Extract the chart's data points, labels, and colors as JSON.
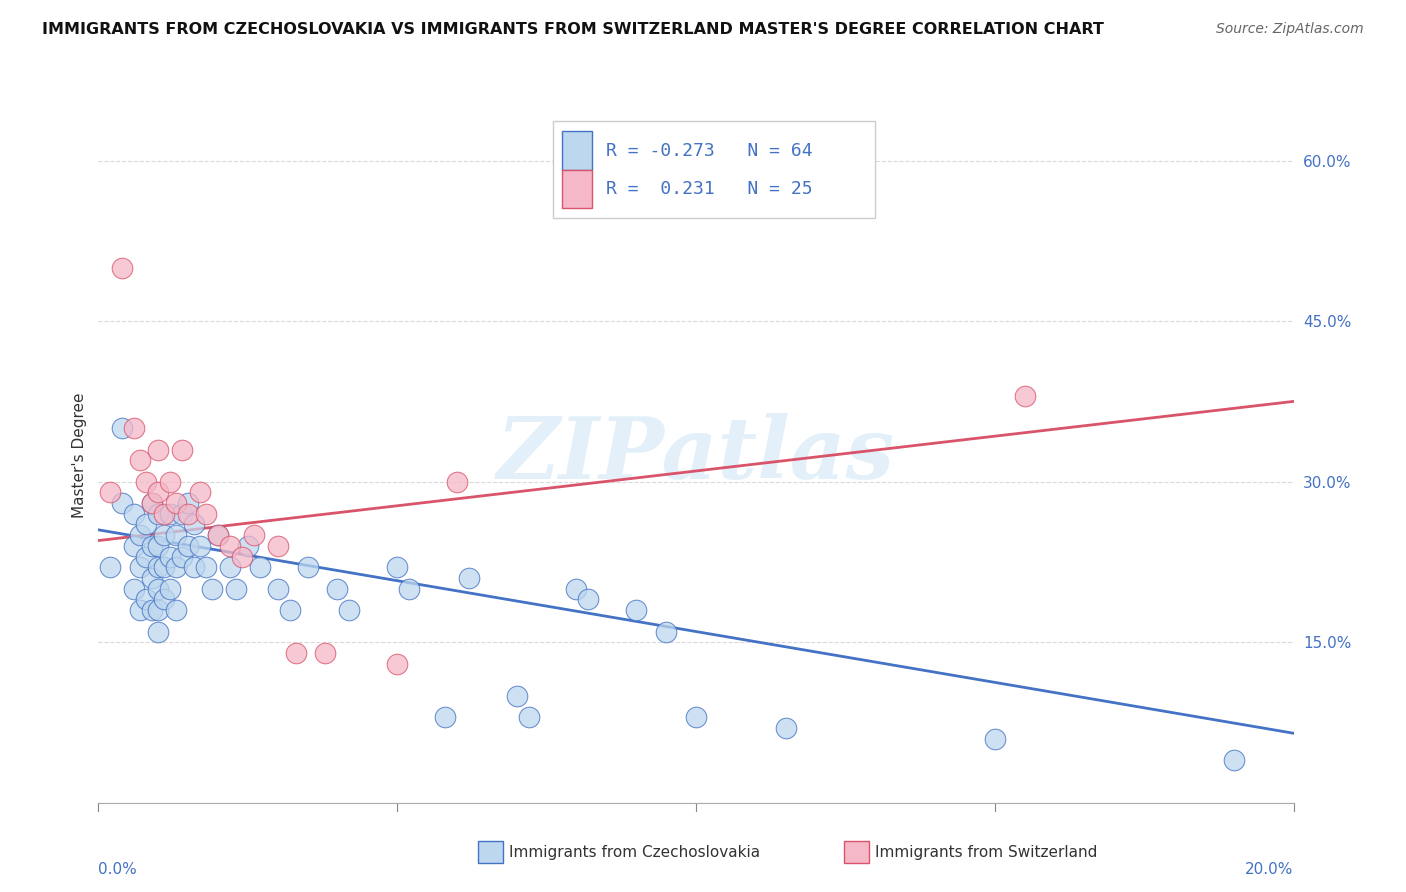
{
  "title": "IMMIGRANTS FROM CZECHOSLOVAKIA VS IMMIGRANTS FROM SWITZERLAND MASTER'S DEGREE CORRELATION CHART",
  "source": "Source: ZipAtlas.com",
  "ylabel": "Master's Degree",
  "yticks": [
    0.0,
    0.15,
    0.3,
    0.45,
    0.6
  ],
  "ytick_labels": [
    "",
    "15.0%",
    "30.0%",
    "45.0%",
    "60.0%"
  ],
  "xlim": [
    0.0,
    0.2
  ],
  "ylim": [
    0.0,
    0.65
  ],
  "blue_R": "-0.273",
  "blue_N": "64",
  "pink_R": "0.231",
  "pink_N": "25",
  "blue_color": "#bdd7ee",
  "pink_color": "#f4b8c8",
  "blue_line_color": "#4472c4",
  "pink_line_color": "#d9546a",
  "tick_label_color": "#4472c4",
  "watermark": "ZIPatlas",
  "legend_label_blue": "Immigrants from Czechoslovakia",
  "legend_label_pink": "Immigrants from Switzerland",
  "blue_x": [
    0.002,
    0.004,
    0.004,
    0.006,
    0.006,
    0.006,
    0.007,
    0.007,
    0.007,
    0.008,
    0.008,
    0.008,
    0.009,
    0.009,
    0.009,
    0.009,
    0.01,
    0.01,
    0.01,
    0.01,
    0.01,
    0.01,
    0.011,
    0.011,
    0.011,
    0.012,
    0.012,
    0.012,
    0.013,
    0.013,
    0.013,
    0.014,
    0.014,
    0.015,
    0.015,
    0.016,
    0.016,
    0.017,
    0.018,
    0.019,
    0.02,
    0.022,
    0.023,
    0.025,
    0.027,
    0.03,
    0.032,
    0.035,
    0.04,
    0.042,
    0.05,
    0.052,
    0.058,
    0.062,
    0.07,
    0.072,
    0.08,
    0.082,
    0.09,
    0.095,
    0.1,
    0.115,
    0.15,
    0.19
  ],
  "blue_y": [
    0.22,
    0.35,
    0.28,
    0.27,
    0.24,
    0.2,
    0.25,
    0.22,
    0.18,
    0.26,
    0.23,
    0.19,
    0.28,
    0.24,
    0.21,
    0.18,
    0.27,
    0.24,
    0.22,
    0.2,
    0.18,
    0.16,
    0.25,
    0.22,
    0.19,
    0.27,
    0.23,
    0.2,
    0.25,
    0.22,
    0.18,
    0.27,
    0.23,
    0.28,
    0.24,
    0.26,
    0.22,
    0.24,
    0.22,
    0.2,
    0.25,
    0.22,
    0.2,
    0.24,
    0.22,
    0.2,
    0.18,
    0.22,
    0.2,
    0.18,
    0.22,
    0.2,
    0.08,
    0.21,
    0.1,
    0.08,
    0.2,
    0.19,
    0.18,
    0.16,
    0.08,
    0.07,
    0.06,
    0.04
  ],
  "pink_x": [
    0.002,
    0.004,
    0.006,
    0.007,
    0.008,
    0.009,
    0.01,
    0.01,
    0.011,
    0.012,
    0.013,
    0.014,
    0.015,
    0.017,
    0.018,
    0.02,
    0.022,
    0.024,
    0.026,
    0.03,
    0.033,
    0.038,
    0.05,
    0.06,
    0.155
  ],
  "pink_y": [
    0.29,
    0.5,
    0.35,
    0.32,
    0.3,
    0.28,
    0.33,
    0.29,
    0.27,
    0.3,
    0.28,
    0.33,
    0.27,
    0.29,
    0.27,
    0.25,
    0.24,
    0.23,
    0.25,
    0.24,
    0.14,
    0.14,
    0.13,
    0.3,
    0.38
  ],
  "blue_line_x": [
    0.0,
    0.2
  ],
  "blue_line_y": [
    0.255,
    0.065
  ],
  "pink_line_x": [
    0.0,
    0.2
  ],
  "pink_line_y": [
    0.245,
    0.375
  ],
  "grid_color": "#d9d9d9",
  "background_color": "#ffffff",
  "title_fontsize": 11.5,
  "axis_label_fontsize": 11,
  "tick_fontsize": 11,
  "legend_fontsize": 13,
  "source_fontsize": 10
}
